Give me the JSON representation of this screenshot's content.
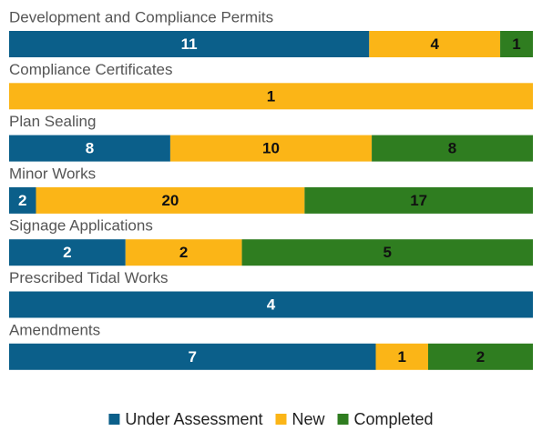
{
  "chart_data": {
    "type": "bar",
    "orientation": "horizontal",
    "stacked": true,
    "normalized": true,
    "categories": [
      "Development and Compliance Permits",
      "Compliance Certificates",
      "Plan Sealing",
      "Minor Works",
      "Signage Applications",
      "Prescribed Tidal Works",
      "Amendments"
    ],
    "series": [
      {
        "name": "Under Assessment",
        "color": "#0b5f8a",
        "values": [
          11,
          0,
          8,
          2,
          2,
          4,
          7
        ]
      },
      {
        "name": "New",
        "color": "#fbb517",
        "values": [
          4,
          1,
          10,
          20,
          2,
          0,
          1
        ]
      },
      {
        "name": "Completed",
        "color": "#2f7d20",
        "values": [
          1,
          0,
          8,
          17,
          5,
          0,
          2
        ]
      }
    ],
    "legend": "bottom"
  }
}
